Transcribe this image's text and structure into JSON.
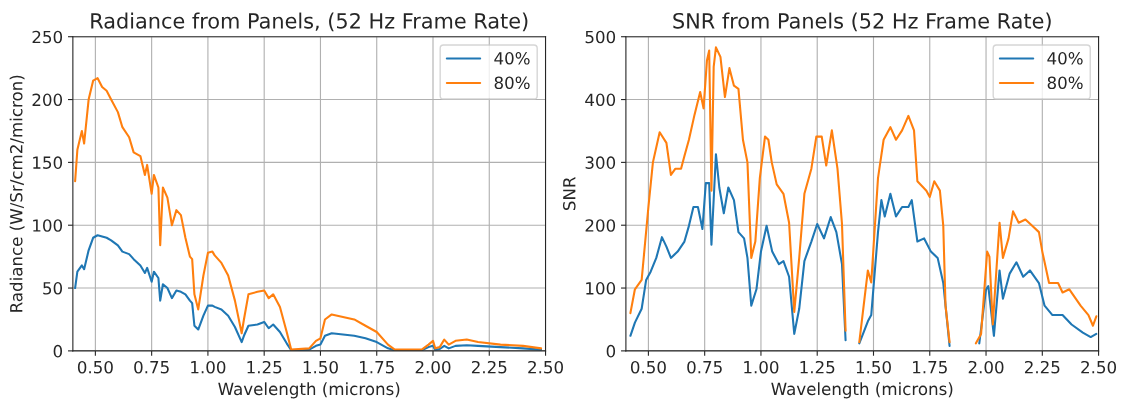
{
  "chart_data": [
    {
      "type": "line",
      "title": "Radiance from Panels, (52 Hz Frame Rate)",
      "xlabel": "Wavelength (microns)",
      "ylabel": "Radiance (W/Sr/cm2/micron)",
      "x": [
        0.41,
        0.42,
        0.44,
        0.45,
        0.47,
        0.49,
        0.51,
        0.53,
        0.55,
        0.57,
        0.6,
        0.62,
        0.65,
        0.67,
        0.7,
        0.72,
        0.73,
        0.75,
        0.76,
        0.78,
        0.788,
        0.8,
        0.82,
        0.84,
        0.86,
        0.88,
        0.9,
        0.92,
        0.93,
        0.94,
        0.957,
        0.98,
        1.0,
        1.02,
        1.03,
        1.06,
        1.09,
        1.12,
        1.15,
        1.16,
        1.18,
        1.22,
        1.25,
        1.27,
        1.29,
        1.32,
        1.35,
        1.37,
        1.45,
        1.48,
        1.5,
        1.52,
        1.55,
        1.6,
        1.65,
        1.7,
        1.75,
        1.8,
        1.83,
        1.95,
        1.98,
        2.0,
        2.01,
        2.03,
        2.05,
        2.07,
        2.1,
        2.15,
        2.2,
        2.3,
        2.4,
        2.48
      ],
      "series": [
        {
          "name": "40%",
          "color": "#1f77b4",
          "values": [
            50,
            63,
            68,
            65,
            80,
            90,
            92,
            91,
            90,
            88,
            84,
            79,
            77,
            73,
            68,
            62,
            66,
            55,
            63,
            58,
            40,
            53,
            50,
            42,
            48,
            47,
            45,
            40,
            38,
            20,
            17,
            28,
            36,
            36,
            35,
            33,
            28,
            19,
            7,
            12,
            20,
            21,
            23,
            18,
            21,
            15,
            6,
            0.5,
            1,
            4,
            5,
            12,
            14,
            13,
            12,
            10,
            7,
            2,
            0.5,
            0.5,
            3,
            4,
            1,
            1.5,
            4,
            2,
            4,
            4.5,
            4,
            3,
            2,
            1
          ]
        },
        {
          "name": "80%",
          "color": "#ff7f0e",
          "values": [
            135,
            160,
            175,
            165,
            200,
            215,
            217,
            210,
            207,
            200,
            190,
            178,
            170,
            158,
            155,
            140,
            148,
            125,
            140,
            130,
            84,
            130,
            122,
            100,
            112,
            108,
            90,
            75,
            73,
            45,
            33,
            60,
            78,
            79,
            76,
            70,
            60,
            40,
            14,
            25,
            45,
            47,
            48,
            42,
            45,
            35,
            15,
            1,
            2,
            8,
            10,
            25,
            29,
            27,
            25,
            20,
            15,
            5,
            1,
            1,
            5,
            8,
            2,
            3,
            9,
            5,
            8,
            9,
            7,
            5,
            4,
            2
          ]
        }
      ],
      "xlim": [
        0.4,
        2.5
      ],
      "ylim": [
        0,
        250
      ],
      "xticks": [
        {
          "value": 0.5,
          "label": "0.50"
        },
        {
          "value": 0.75,
          "label": "0.75"
        },
        {
          "value": 1.0,
          "label": "1.00"
        },
        {
          "value": 1.25,
          "label": "1.25"
        },
        {
          "value": 1.5,
          "label": "1.50"
        },
        {
          "value": 1.75,
          "label": "1.75"
        },
        {
          "value": 2.0,
          "label": "2.00"
        },
        {
          "value": 2.25,
          "label": "2.25"
        },
        {
          "value": 2.5,
          "label": "2.50"
        }
      ],
      "yticks": [
        0,
        50,
        100,
        150,
        200,
        250
      ],
      "grid": true,
      "legend": "top right"
    },
    {
      "type": "line",
      "title": "SNR from Panels (52 Hz Frame Rate)",
      "xlabel": "Wavelength (microns)",
      "ylabel": "SNR",
      "series": [
        {
          "name": "40%",
          "color": "#1f77b4",
          "x": [
            0.42,
            0.44,
            0.47,
            0.49,
            0.51,
            0.535,
            0.56,
            0.58,
            0.6,
            0.63,
            0.66,
            0.68,
            0.7,
            0.72,
            0.74,
            0.755,
            0.77,
            0.78,
            0.8,
            0.815,
            0.835,
            0.855,
            0.88,
            0.9,
            0.925,
            0.94,
            0.957,
            0.98,
            1.0,
            1.025,
            1.05,
            1.08,
            1.1,
            1.125,
            1.148,
            1.17,
            1.193,
            1.224,
            1.25,
            1.28,
            1.31,
            1.335,
            1.36,
            1.376,
            1.4,
            1.437,
            1.475,
            1.49,
            1.52,
            1.535,
            1.55,
            1.575,
            1.6,
            1.627,
            1.655,
            1.67,
            1.695,
            1.725,
            1.755,
            1.785,
            1.81,
            1.838,
            1.9,
            1.97,
            2.0,
            2.01,
            2.035,
            2.06,
            2.075,
            2.105,
            2.135,
            2.165,
            2.195,
            2.235,
            2.26,
            2.295,
            2.34,
            2.38,
            2.43,
            2.465,
            2.49
          ],
          "values": [
            24,
            45,
            67,
            113,
            126,
            148,
            181,
            166,
            148,
            158,
            174,
            199,
            229,
            229,
            194,
            267,
            267,
            169,
            313,
            260,
            219,
            260,
            240,
            189,
            179,
            148,
            72,
            98,
            158,
            199,
            158,
            138,
            143,
            118,
            27,
            67,
            143,
            174,
            202,
            179,
            213,
            189,
            138,
            17,
            null,
            12,
            47,
            57,
            189,
            240,
            214,
            250,
            214,
            229,
            229,
            240,
            174,
            179,
            158,
            148,
            108,
            8,
            null,
            12,
            98,
            103,
            24,
            128,
            83,
            123,
            141,
            118,
            128,
            108,
            72,
            57,
            57,
            42,
            29,
            22,
            27
          ]
        },
        {
          "name": "80%",
          "color": "#ff7f0e",
          "x": [
            0.42,
            0.44,
            0.47,
            0.5,
            0.52,
            0.55,
            0.58,
            0.6,
            0.62,
            0.645,
            0.66,
            0.68,
            0.705,
            0.73,
            0.745,
            0.76,
            0.77,
            0.78,
            0.79,
            0.8,
            0.82,
            0.84,
            0.86,
            0.88,
            0.9,
            0.92,
            0.94,
            0.957,
            0.975,
            0.995,
            1.018,
            1.033,
            1.048,
            1.07,
            1.1,
            1.125,
            1.148,
            1.17,
            1.193,
            1.224,
            1.246,
            1.27,
            1.29,
            1.315,
            1.34,
            1.36,
            1.376,
            1.4,
            1.437,
            1.475,
            1.49,
            1.52,
            1.545,
            1.575,
            1.6,
            1.627,
            1.655,
            1.68,
            1.695,
            1.735,
            1.75,
            1.77,
            1.795,
            1.81,
            1.82,
            1.838,
            1.9,
            1.955,
            1.978,
            2.005,
            2.015,
            2.03,
            2.06,
            2.075,
            2.1,
            2.12,
            2.145,
            2.175,
            2.205,
            2.235,
            2.25,
            2.28,
            2.32,
            2.34,
            2.37,
            2.42,
            2.455,
            2.475,
            2.49
          ],
          "values": [
            60,
            98,
            113,
            229,
            300,
            348,
            331,
            280,
            290,
            290,
            310,
            336,
            376,
            412,
            386,
            462,
            478,
            255,
            452,
            483,
            468,
            404,
            450,
            422,
            417,
            336,
            300,
            148,
            174,
            275,
            341,
            336,
            300,
            265,
            250,
            204,
            62,
            148,
            250,
            290,
            341,
            341,
            295,
            351,
            290,
            202,
            32,
            null,
            14,
            128,
            109,
            275,
            336,
            356,
            336,
            351,
            374,
            351,
            270,
            255,
            245,
            270,
            255,
            199,
            72,
            14,
            null,
            12,
            27,
            158,
            150,
            42,
            204,
            148,
            179,
            222,
            204,
            209,
            199,
            189,
            158,
            108,
            108,
            93,
            98,
            72,
            57,
            40,
            55
          ]
        }
      ],
      "xlim": [
        0.4,
        2.5
      ],
      "ylim": [
        0,
        500
      ],
      "xticks": [
        {
          "value": 0.5,
          "label": "0.50"
        },
        {
          "value": 0.75,
          "label": "0.75"
        },
        {
          "value": 1.0,
          "label": "1.00"
        },
        {
          "value": 1.25,
          "label": "1.25"
        },
        {
          "value": 1.5,
          "label": "1.50"
        },
        {
          "value": 1.75,
          "label": "1.75"
        },
        {
          "value": 2.0,
          "label": "2.00"
        },
        {
          "value": 2.25,
          "label": "2.25"
        },
        {
          "value": 2.5,
          "label": "2.50"
        }
      ],
      "yticks": [
        0,
        100,
        200,
        300,
        400,
        500
      ],
      "grid": true,
      "legend": "top right"
    }
  ]
}
